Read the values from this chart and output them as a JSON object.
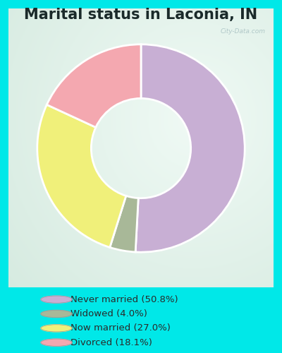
{
  "title": "Marital status in Laconia, IN",
  "slices": [
    50.8,
    4.0,
    27.0,
    18.1
  ],
  "labels": [
    "Never married (50.8%)",
    "Widowed (4.0%)",
    "Now married (27.0%)",
    "Divorced (18.1%)"
  ],
  "colors": [
    "#c8afd4",
    "#a8b898",
    "#f0f07a",
    "#f4a8b0"
  ],
  "legend_colors": [
    "#c8afd4",
    "#a8b898",
    "#f0f07a",
    "#f4a8b0"
  ],
  "outer_bg": "#00e8e8",
  "chart_bg_center": "#e8f5f0",
  "chart_bg_edge": "#d0ead8",
  "title_fontsize": 15,
  "watermark": "City-Data.com",
  "donut_width": 0.52
}
